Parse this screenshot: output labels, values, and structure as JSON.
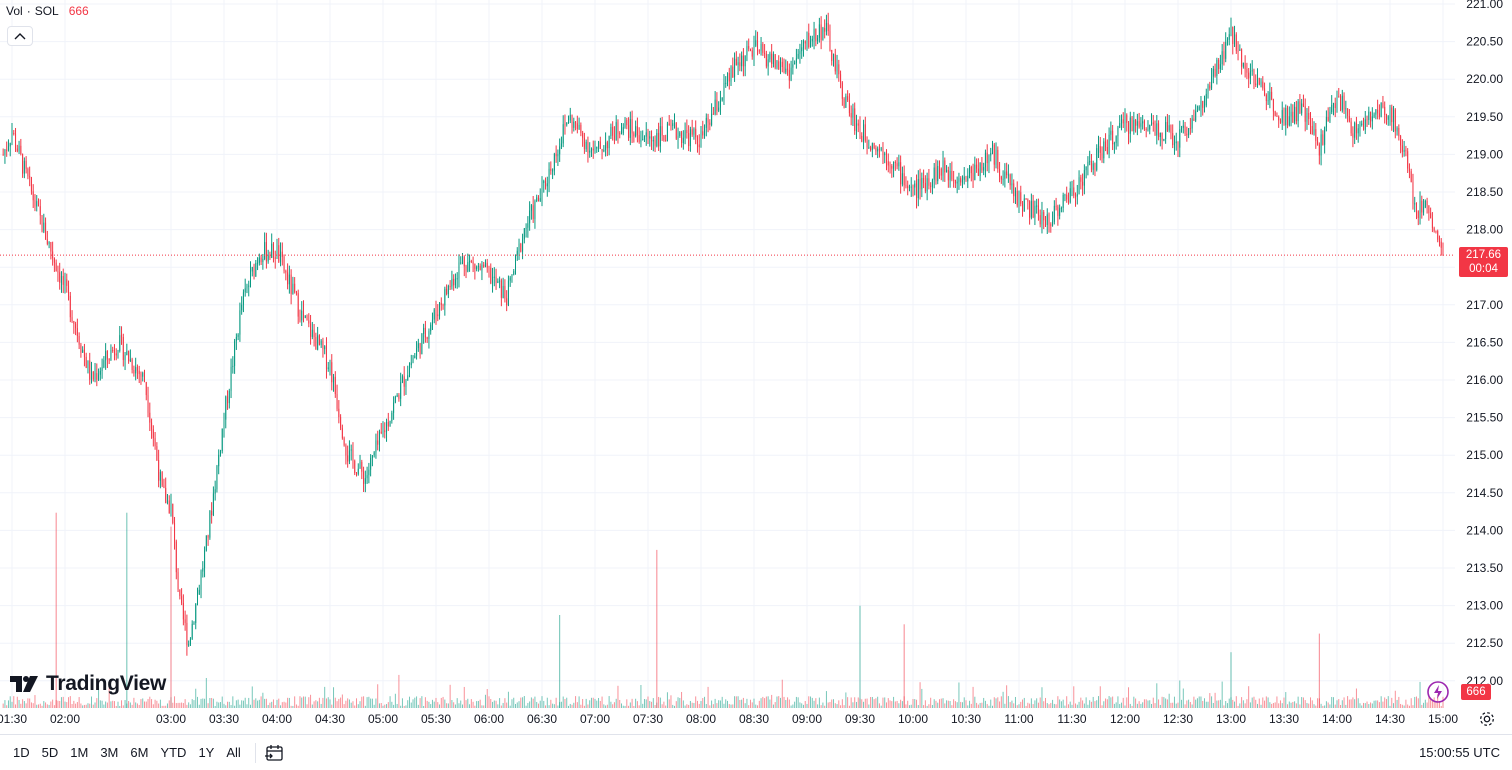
{
  "legend": {
    "label": "Vol",
    "separator": "·",
    "symbol": "SOL",
    "value": "666"
  },
  "logo": {
    "text": "TradingView"
  },
  "colors": {
    "up": "#089981",
    "down": "#f23645",
    "grid": "#f0f3fa",
    "text": "#131722"
  },
  "price_tag": {
    "price": "217.66",
    "countdown": "00:04"
  },
  "volume_tag": {
    "value": "666"
  },
  "range_buttons": [
    "1D",
    "5D",
    "1M",
    "3M",
    "6M",
    "YTD",
    "1Y",
    "All"
  ],
  "clock": "15:00:55 UTC",
  "icons": {
    "collapse": "chevron-up-icon",
    "compare": "goto-date-icon",
    "settings": "gear-icon",
    "flash": "flash-icon"
  },
  "chart_data": {
    "type": "candlestick",
    "title": "",
    "ylim": [
      211.75,
      221.0
    ],
    "y_ticks": [
      "221.00",
      "220.50",
      "220.00",
      "219.50",
      "219.00",
      "218.50",
      "218.00",
      "217.50",
      "217.00",
      "216.50",
      "216.00",
      "215.50",
      "215.00",
      "214.50",
      "214.00",
      "213.50",
      "213.00",
      "212.50",
      "212.00"
    ],
    "x_ticks": [
      "01:30",
      "02:00",
      "03:00",
      "03:30",
      "04:00",
      "04:30",
      "05:00",
      "05:30",
      "06:00",
      "06:30",
      "07:00",
      "07:30",
      "08:00",
      "08:30",
      "09:00",
      "09:30",
      "10:00",
      "10:30",
      "11:00",
      "11:30",
      "12:00",
      "12:30",
      "13:00",
      "13:30",
      "14:00",
      "14:30",
      "15:00"
    ],
    "price_path": {
      "times": [
        "01:25",
        "01:30",
        "01:45",
        "02:00",
        "02:15",
        "02:30",
        "02:45",
        "02:55",
        "03:00",
        "03:05",
        "03:10",
        "03:20",
        "03:30",
        "03:40",
        "03:50",
        "04:00",
        "04:15",
        "04:30",
        "04:40",
        "04:50",
        "05:00",
        "05:15",
        "05:30",
        "05:45",
        "06:00",
        "06:10",
        "06:20",
        "06:30",
        "06:45",
        "07:00",
        "07:15",
        "07:30",
        "07:45",
        "08:00",
        "08:20",
        "08:30",
        "08:50",
        "09:00",
        "09:10",
        "09:20",
        "09:30",
        "09:45",
        "10:00",
        "10:15",
        "10:30",
        "10:45",
        "11:00",
        "11:15",
        "11:30",
        "11:45",
        "12:00",
        "12:15",
        "12:30",
        "12:45",
        "13:00",
        "13:10",
        "13:20",
        "13:30",
        "13:40",
        "13:50",
        "14:00",
        "14:10",
        "14:20",
        "14:30",
        "14:40",
        "14:45",
        "14:50",
        "14:55",
        "15:00"
      ],
      "prices": [
        219.0,
        219.3,
        218.2,
        217.2,
        216.0,
        216.5,
        216.0,
        214.5,
        214.3,
        213.0,
        212.5,
        213.8,
        215.5,
        217.0,
        217.7,
        217.7,
        216.8,
        216.2,
        215.0,
        214.7,
        215.3,
        216.2,
        216.9,
        217.6,
        217.4,
        217.1,
        218.0,
        218.5,
        219.5,
        219.0,
        219.4,
        219.2,
        219.3,
        219.2,
        220.2,
        220.4,
        220.1,
        220.5,
        220.7,
        219.8,
        219.3,
        219.0,
        218.5,
        218.8,
        218.7,
        219.0,
        218.4,
        218.1,
        218.5,
        219.0,
        219.4,
        219.4,
        219.2,
        219.7,
        220.6,
        220.1,
        219.8,
        219.5,
        219.6,
        219.1,
        219.8,
        219.3,
        219.5,
        219.6,
        218.9,
        218.2,
        218.4,
        218.0,
        217.66
      ]
    },
    "last_price": 217.66,
    "volume": {
      "max_label": "666",
      "spikes": [
        [
          "01:55",
          210
        ],
        [
          "02:35",
          210
        ],
        [
          "03:00",
          195
        ],
        [
          "06:40",
          100
        ],
        [
          "07:35",
          170
        ],
        [
          "09:30",
          110
        ],
        [
          "09:55",
          90
        ],
        [
          "13:00",
          60
        ],
        [
          "13:50",
          80
        ]
      ]
    }
  }
}
